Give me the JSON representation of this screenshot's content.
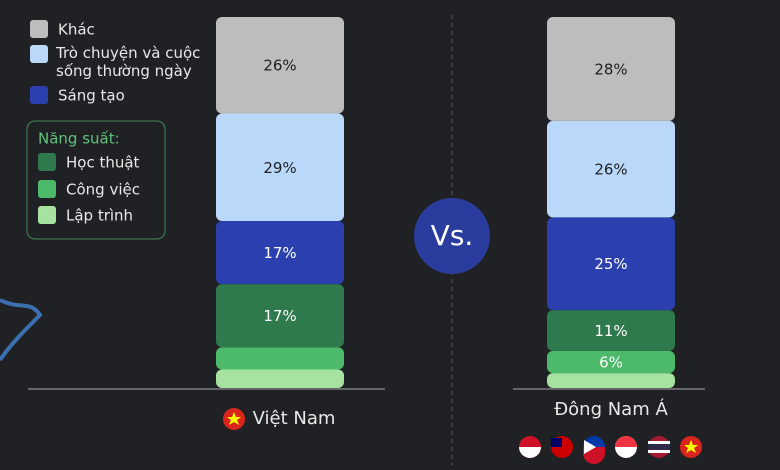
{
  "chart_data": {
    "type": "stacked-bar",
    "categories": [
      "Việt Nam",
      "Đông Nam Á"
    ],
    "series": [
      {
        "name": "Khác",
        "color": "#bdbdbd",
        "values": [
          26,
          28
        ],
        "value_labels": [
          "26%",
          "28%"
        ]
      },
      {
        "name": "Trò chuyện và cuộc sống thường ngày",
        "color": "#b9d8fa",
        "values": [
          29,
          26
        ],
        "value_labels": [
          "29%",
          "26%"
        ]
      },
      {
        "name": "Sáng tạo",
        "color": "#2b3fae",
        "values": [
          17,
          25
        ],
        "value_labels": [
          "17%",
          "25%"
        ]
      },
      {
        "name": "Học thuật",
        "color": "#2f7a4c",
        "values": [
          17,
          11
        ],
        "value_labels": [
          "17%",
          "11%"
        ]
      },
      {
        "name": "Công việc",
        "color": "#4cba6a",
        "values": [
          6,
          6
        ],
        "value_labels": [
          null,
          "6%"
        ]
      },
      {
        "name": "Lập trình",
        "color": "#a6e3a0",
        "values": [
          5,
          4
        ],
        "value_labels": [
          null,
          null
        ]
      }
    ],
    "legend_group_title": "Năng suất:",
    "comparison_label": "Vs."
  }
}
